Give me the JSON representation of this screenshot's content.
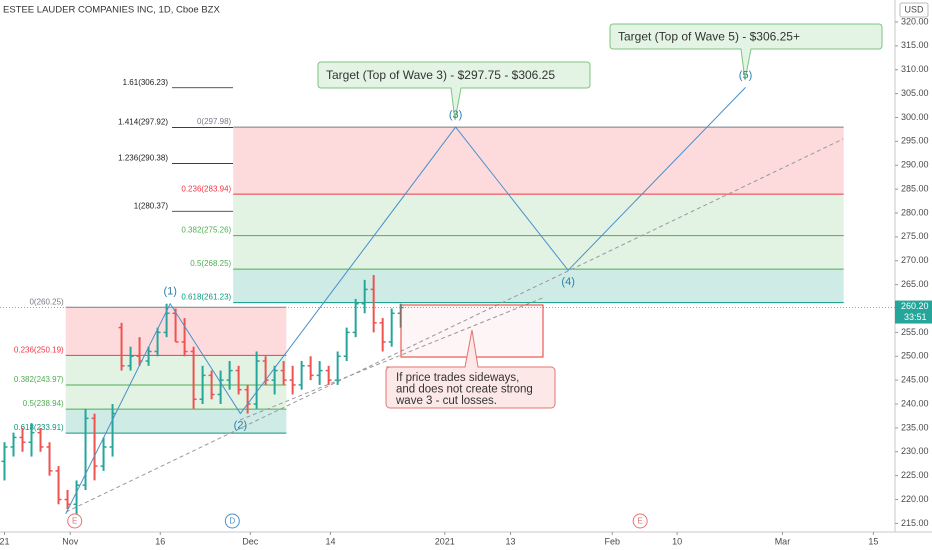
{
  "chart_data": {
    "type": "ohlc",
    "title": "ESTEE LAUDER COMPANIES INC, 1D, Cboe BZX",
    "currency": "USD",
    "up_color": "#26a69a",
    "down_color": "#ef5350",
    "xlim": [
      0,
      99.4
    ],
    "xticks": [
      {
        "value": 0.5,
        "label": "21"
      },
      {
        "value": 7.8,
        "label": "Nov"
      },
      {
        "value": 17.8,
        "label": "16"
      },
      {
        "value": 27.8,
        "label": "Dec"
      },
      {
        "value": 36.7,
        "label": "14"
      },
      {
        "value": 49.4,
        "label": "2021"
      },
      {
        "value": 56.7,
        "label": "13"
      },
      {
        "value": 68,
        "label": "Feb"
      },
      {
        "value": 75.2,
        "label": "10"
      },
      {
        "value": 86.9,
        "label": "Mar"
      },
      {
        "value": 97,
        "label": "15"
      }
    ],
    "ylim": [
      213.2,
      324.6
    ],
    "yticks": [
      {
        "value": 215,
        "label": "215.00"
      },
      {
        "value": 220,
        "label": "220.00"
      },
      {
        "value": 225,
        "label": "225.00"
      },
      {
        "value": 230,
        "label": "230.00"
      },
      {
        "value": 235,
        "label": "235.00"
      },
      {
        "value": 240,
        "label": "240.00"
      },
      {
        "value": 245,
        "label": "245.00"
      },
      {
        "value": 250,
        "label": "250.00"
      },
      {
        "value": 255,
        "label": "255.00"
      },
      {
        "value": 265,
        "label": "265.00"
      },
      {
        "value": 270,
        "label": "270.00"
      },
      {
        "value": 275,
        "label": "275.00"
      },
      {
        "value": 280,
        "label": "280.00"
      },
      {
        "value": 285,
        "label": "285.00"
      },
      {
        "value": 290,
        "label": "290.00"
      },
      {
        "value": 295,
        "label": "295.00"
      },
      {
        "value": 300,
        "label": "300.00"
      },
      {
        "value": 305,
        "label": "305.00"
      },
      {
        "value": 310,
        "label": "310.00"
      },
      {
        "value": 315,
        "label": "315.00"
      },
      {
        "value": 320,
        "label": "320.00"
      }
    ],
    "open": [
      228,
      231,
      233,
      232,
      234,
      231,
      226,
      220,
      219,
      223,
      237,
      227,
      231,
      256,
      248,
      250,
      249,
      251,
      255,
      259,
      253,
      251,
      241,
      246,
      242,
      245,
      247,
      243,
      240,
      249,
      245,
      247,
      245,
      244,
      248,
      246,
      247,
      245,
      250,
      255,
      261,
      264,
      257,
      253,
      259
    ],
    "high": [
      232,
      234,
      235,
      236,
      235,
      232,
      227,
      222,
      224,
      239,
      238,
      233,
      240,
      257,
      252,
      254,
      252,
      256,
      261,
      260,
      258,
      252,
      248,
      247,
      247,
      249,
      248,
      244,
      251,
      250,
      248,
      249,
      248,
      249,
      250,
      249,
      248,
      251,
      256,
      262,
      266,
      267,
      258,
      260,
      261
    ],
    "low": [
      224,
      229,
      230,
      229,
      230,
      225,
      219,
      218,
      216,
      222,
      224,
      226,
      229,
      247,
      247,
      248,
      248,
      250,
      254,
      253,
      250,
      239,
      240,
      241,
      240,
      243,
      242,
      238,
      239,
      244,
      242,
      244,
      242,
      243,
      245,
      244,
      244,
      244,
      249,
      254,
      259,
      255,
      251,
      252,
      256
    ],
    "close": [
      231,
      233,
      232,
      234,
      231,
      226,
      220,
      219,
      223,
      237,
      227,
      231,
      238,
      248,
      250,
      249,
      251,
      255,
      259,
      253,
      251,
      241,
      246,
      242,
      245,
      247,
      243,
      240,
      249,
      245,
      247,
      245,
      244,
      248,
      246,
      247,
      245,
      250,
      255,
      261,
      264,
      257,
      253,
      259,
      260.2
    ],
    "last_price": {
      "value": 260.2,
      "label": "260.20"
    },
    "countdown": "33:51",
    "fib": [
      {
        "x_range": [
          7.3,
          31.8
        ],
        "levels": [
          {
            "value": 260.25,
            "label": "0(260.25)",
            "color": "#787b86"
          },
          {
            "value": 250.19,
            "label": "0.236(250.19)",
            "color": "#f23645"
          },
          {
            "value": 243.97,
            "label": "0.382(243.97)",
            "color": "#4caf50"
          },
          {
            "value": 238.94,
            "label": "0.5(238.94)",
            "color": "#4caf50"
          },
          {
            "value": 233.91,
            "label": "0.618(233.91)",
            "color": "#089981"
          }
        ]
      },
      {
        "x_range": [
          25.9,
          93.7
        ],
        "levels": [
          {
            "value": 297.98,
            "label": "0(297.98)",
            "color": "#787b86"
          },
          {
            "value": 283.94,
            "label": "0.236(283.94)",
            "color": "#f23645"
          },
          {
            "value": 275.26,
            "label": "0.382(275.26)",
            "color": "#4caf50"
          },
          {
            "value": 268.25,
            "label": "0.5(268.25)",
            "color": "#4caf50"
          },
          {
            "value": 261.23,
            "label": "0.618(261.23)",
            "color": "#089981"
          }
        ]
      }
    ],
    "extensions": [
      {
        "value": 306.23,
        "label": "1.61(306.23)"
      },
      {
        "value": 297.92,
        "label": "1.414(297.92)"
      },
      {
        "value": 290.38,
        "label": "1.236(290.38)"
      },
      {
        "value": 280.37,
        "label": "1(280.37)"
      }
    ],
    "waves": {
      "x": [
        7.3,
        18.9,
        26.7,
        50.6,
        63.1,
        82.8
      ],
      "y": [
        217,
        261,
        238,
        298,
        268,
        306.3
      ],
      "labels": [
        null,
        "(1)",
        "(2)",
        "(3)",
        "(4)",
        "(5)"
      ]
    },
    "callouts": [
      "Target (Top of Wave 3) - $297.75 - $306.25",
      "Target (Top of Wave 5) - $306.25+"
    ],
    "note": [
      "If price trades sideways,",
      "and does not create strong",
      "wave 3 - cut losses."
    ],
    "events": [
      {
        "x": 8.3,
        "label": "E"
      },
      {
        "x": 25.8,
        "label": "D"
      },
      {
        "x": 71.1,
        "label": "E"
      }
    ]
  }
}
